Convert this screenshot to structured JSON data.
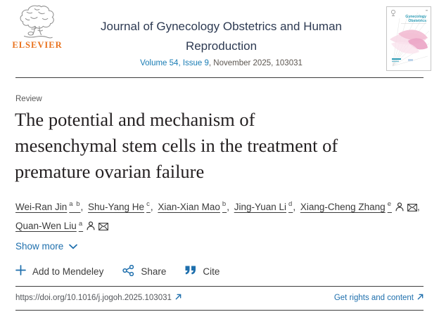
{
  "colors": {
    "accent_blue": "#1e6fad",
    "volume_link_teal": "#197cb4",
    "elsevier_orange": "#e9711c",
    "journal_title_navy": "#2d3a52",
    "cover_teal": "#2a9bb5",
    "rule_gray": "#3d3d3d"
  },
  "header": {
    "publisher_logo_text": "ELSEVIER",
    "journal_title": "Journal of Gynecology Obstetrics and Human Reproduction",
    "volume_link": "Volume 54, Issue 9",
    "volume_rest": ", November 2025, 103031",
    "cover": {
      "line1": "Gynecology",
      "line2": "Obstetrics"
    }
  },
  "article": {
    "content_type": "Review",
    "title": "The potential and mechanism of\nmesenchymal stem cells in the treatment of\npremature ovarian failure",
    "show_more": "Show more",
    "authors": [
      {
        "name": "Wei-Ran Jin",
        "sup": "a b",
        "profile_icon": false,
        "email_icon": false
      },
      {
        "name": "Shu-Yang He",
        "sup": "c",
        "profile_icon": false,
        "email_icon": false
      },
      {
        "name": "Xian-Xian Mao",
        "sup": "b",
        "profile_icon": false,
        "email_icon": false
      },
      {
        "name": "Jing-Yuan Li",
        "sup": "d",
        "profile_icon": false,
        "email_icon": false
      },
      {
        "name": "Xiang-Cheng Zhang",
        "sup": "e",
        "profile_icon": true,
        "email_icon": true
      },
      {
        "name": "Quan-Wen Liu",
        "sup": "a",
        "profile_icon": true,
        "email_icon": true
      }
    ]
  },
  "toolbar": {
    "mendeley_label": "Add to Mendeley",
    "share_label": "Share",
    "cite_label": "Cite"
  },
  "footer": {
    "doi": "https://doi.org/10.1016/j.jogoh.2025.103031",
    "rights_label": "Get rights and content"
  }
}
